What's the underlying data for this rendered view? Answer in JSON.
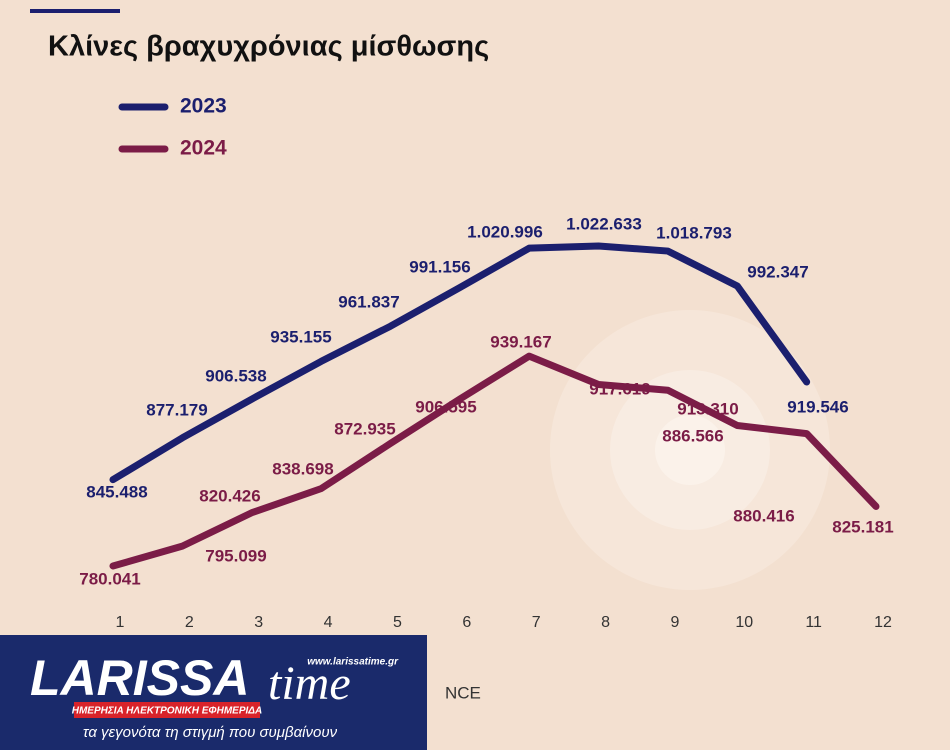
{
  "chart_data": {
    "type": "line",
    "title": "Κλίνες βραχυχρόνιας μίσθωσης",
    "x": [
      1,
      2,
      3,
      4,
      5,
      6,
      7,
      8,
      9,
      10,
      11,
      12
    ],
    "series": [
      {
        "name": "2023",
        "color": "#1b1f6e",
        "values": [
          845488,
          877179,
          906538,
          935155,
          961837,
          991156,
          1020996,
          1022633,
          1018793,
          992347,
          919546,
          null
        ],
        "value_labels": [
          "845.488",
          "877.179",
          "906.538",
          "935.155",
          "961.837",
          "991.156",
          "1.020.996",
          "1.022.633",
          "1.018.793",
          "992.347",
          "919.546",
          null
        ]
      },
      {
        "name": "2024",
        "color": "#7b1c47",
        "values": [
          780041,
          795099,
          820426,
          838698,
          872935,
          906595,
          939167,
          917619,
          913310,
          886566,
          880416,
          825181
        ],
        "value_labels": [
          "780.041",
          "795.099",
          "820.426",
          "838.698",
          "872.935",
          "906.595",
          "939.167",
          "917.619",
          "913.310",
          "886.566",
          "880.416",
          "825.181"
        ]
      }
    ],
    "source": "NCE"
  },
  "logo": {
    "name_left": "LARISSA",
    "name_right": "time",
    "url": "www.larissatime.gr",
    "tagline": "ΗΜΕΡΗΣΙΑ ΗΛΕΚΤΡΟΝΙΚΗ ΕΦΗΜΕΡΙΔΑ",
    "motto": "τα γεγονότα τη στιγμή που συμβαίνουν"
  }
}
